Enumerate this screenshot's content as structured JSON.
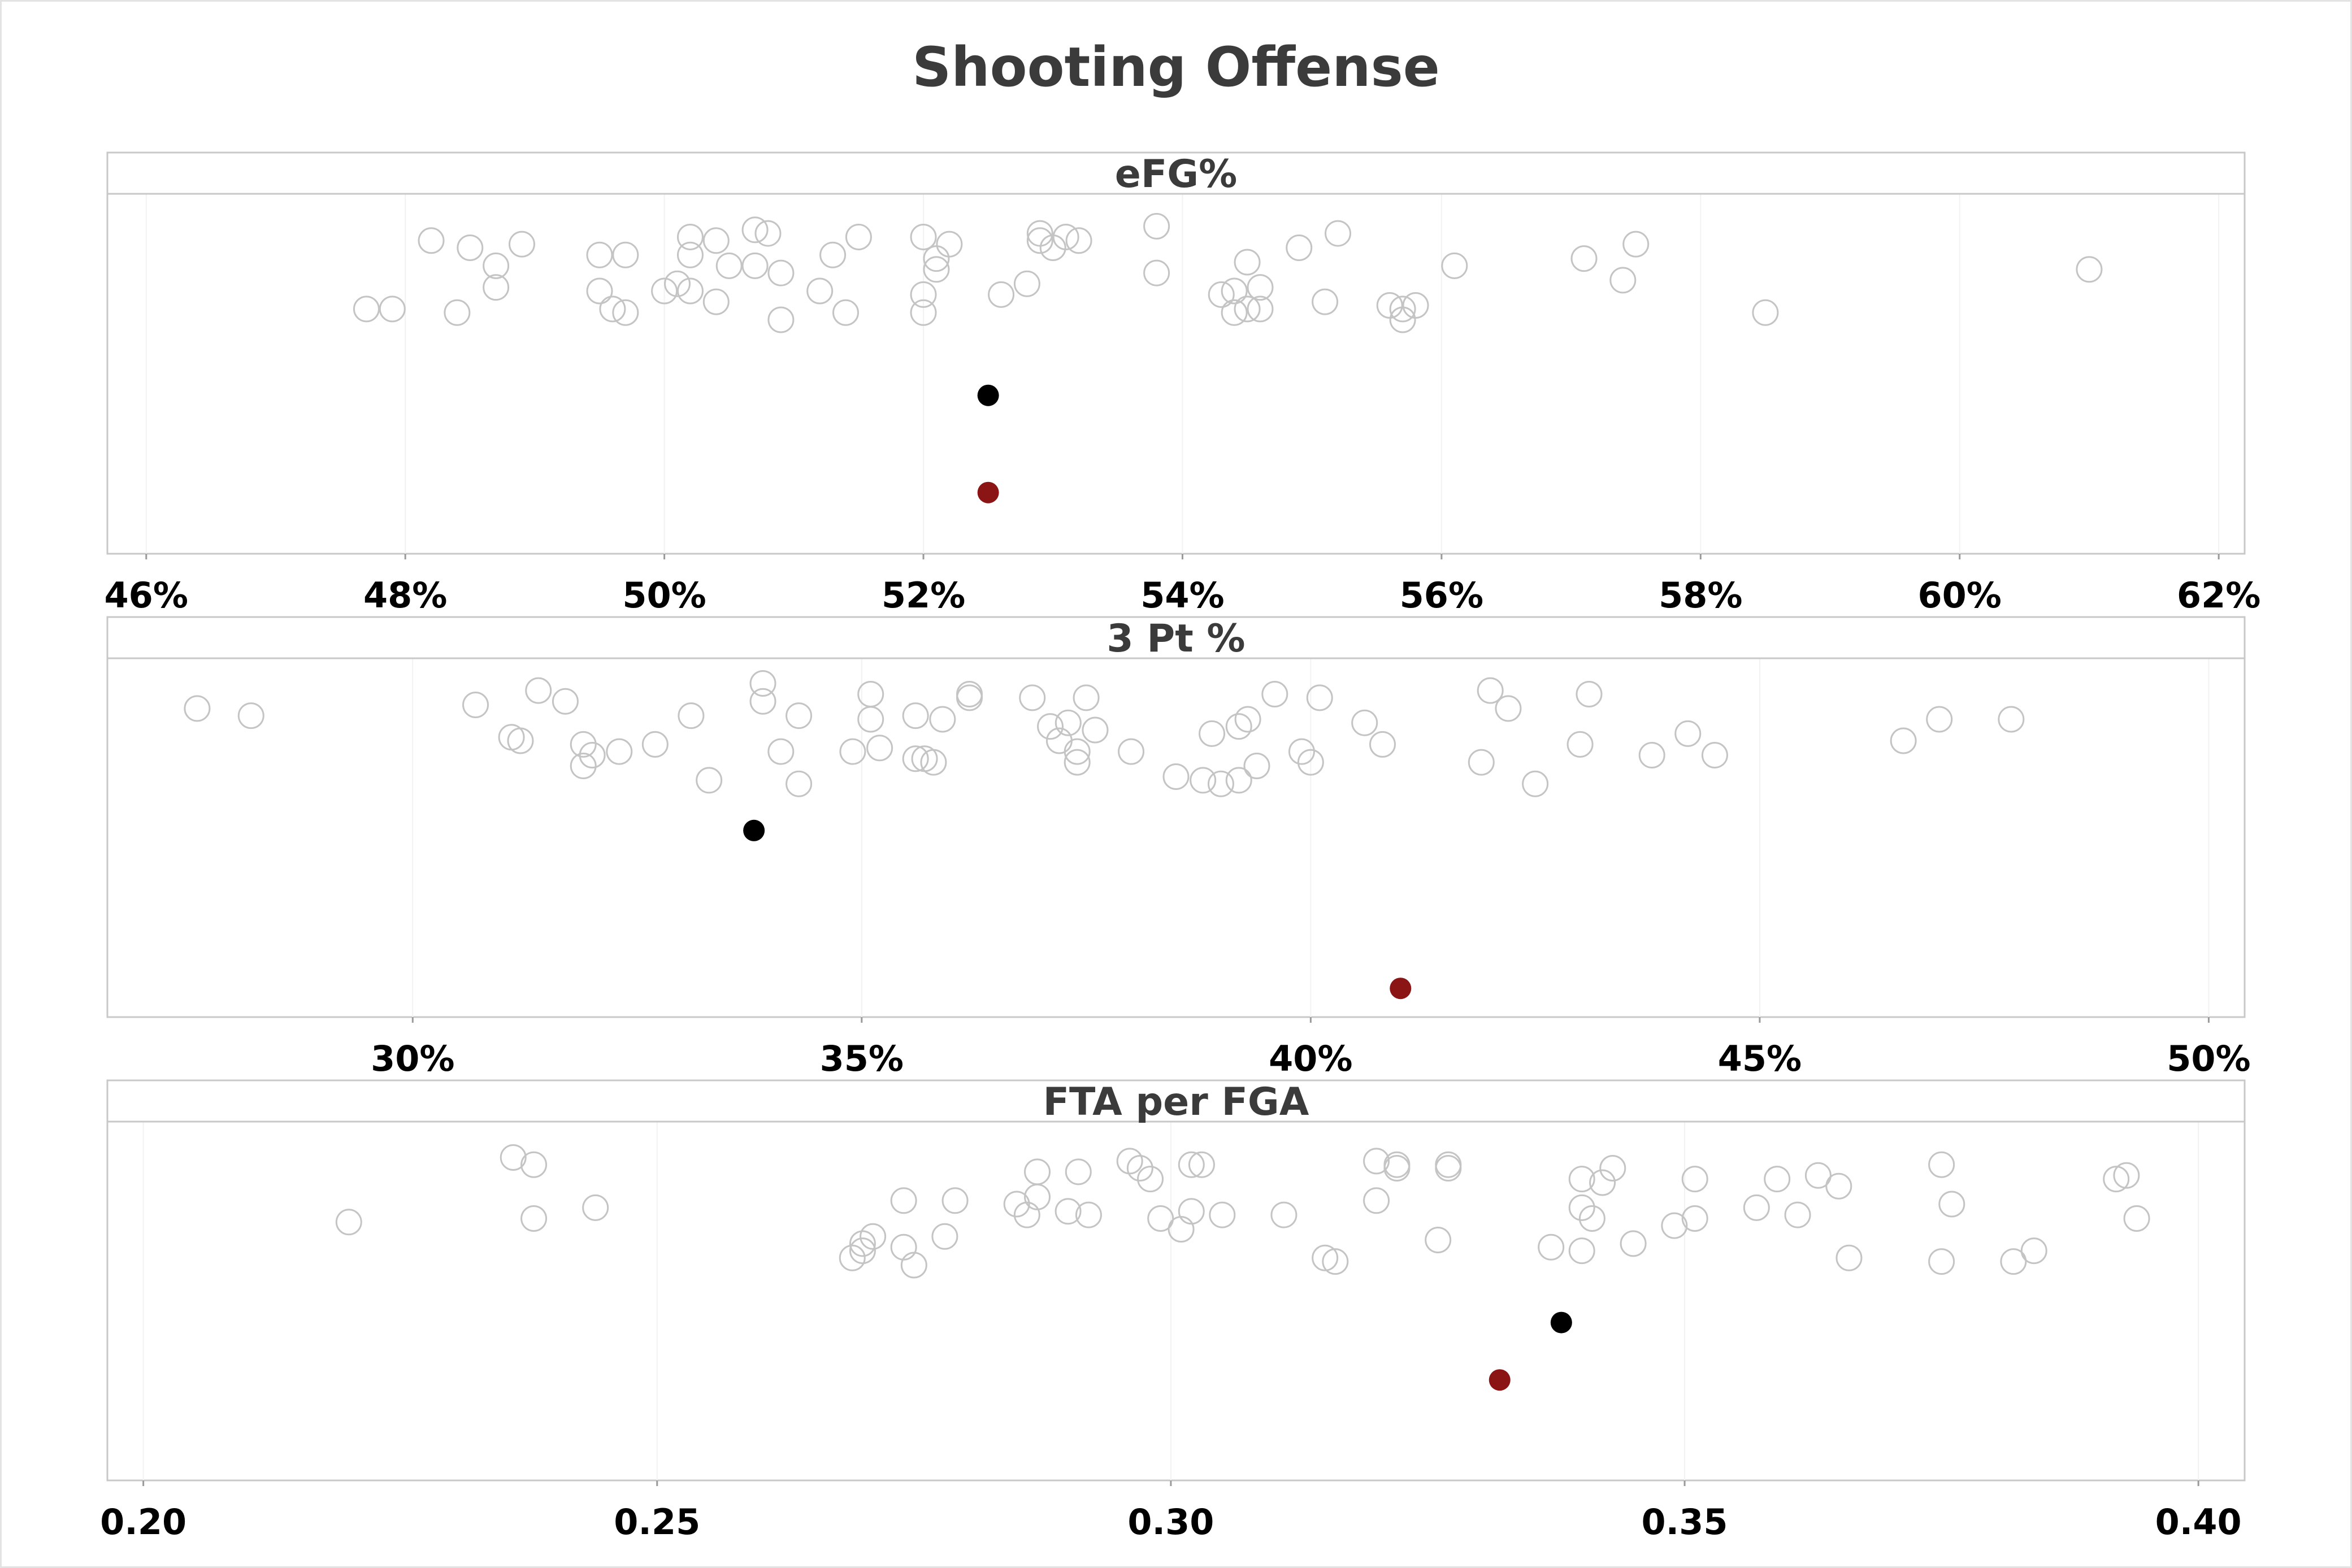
{
  "title": "Shooting Offense",
  "colors": {
    "other": "#c4c4c4",
    "team_a": "#000000",
    "team_b": "#8b1414"
  },
  "chart_data": [
    {
      "type": "scatter",
      "subtitle": "eFG%",
      "xlim": [
        0.457,
        0.622
      ],
      "ticks": [
        0.46,
        0.48,
        0.5,
        0.52,
        0.54,
        0.56,
        0.58,
        0.6,
        0.62
      ],
      "tick_labels": [
        "46%",
        "48%",
        "50%",
        "52%",
        "54%",
        "56%",
        "58%",
        "60%",
        "62%"
      ],
      "highlight": [
        {
          "x": 0.525,
          "color": "#000000",
          "jitter": 0.44
        },
        {
          "x": 0.525,
          "color": "#8b1414",
          "jitter": 0.17
        }
      ],
      "others": [
        [
          0.477,
          0.68
        ],
        [
          0.479,
          0.68
        ],
        [
          0.482,
          0.87
        ],
        [
          0.484,
          0.67
        ],
        [
          0.485,
          0.85
        ],
        [
          0.487,
          0.8
        ],
        [
          0.487,
          0.74
        ],
        [
          0.489,
          0.86
        ],
        [
          0.495,
          0.83
        ],
        [
          0.495,
          0.73
        ],
        [
          0.496,
          0.68
        ],
        [
          0.497,
          0.83
        ],
        [
          0.497,
          0.67
        ],
        [
          0.5,
          0.73
        ],
        [
          0.501,
          0.75
        ],
        [
          0.502,
          0.88
        ],
        [
          0.502,
          0.83
        ],
        [
          0.502,
          0.73
        ],
        [
          0.504,
          0.87
        ],
        [
          0.504,
          0.7
        ],
        [
          0.505,
          0.8
        ],
        [
          0.507,
          0.9
        ],
        [
          0.507,
          0.8
        ],
        [
          0.508,
          0.89
        ],
        [
          0.509,
          0.78
        ],
        [
          0.509,
          0.65
        ],
        [
          0.512,
          0.73
        ],
        [
          0.513,
          0.83
        ],
        [
          0.514,
          0.67
        ],
        [
          0.515,
          0.88
        ],
        [
          0.52,
          0.88
        ],
        [
          0.52,
          0.72
        ],
        [
          0.52,
          0.67
        ],
        [
          0.521,
          0.82
        ],
        [
          0.521,
          0.79
        ],
        [
          0.522,
          0.86
        ],
        [
          0.526,
          0.72
        ],
        [
          0.528,
          0.75
        ],
        [
          0.529,
          0.89
        ],
        [
          0.529,
          0.87
        ],
        [
          0.53,
          0.85
        ],
        [
          0.531,
          0.88
        ],
        [
          0.532,
          0.87
        ],
        [
          0.538,
          0.91
        ],
        [
          0.538,
          0.78
        ],
        [
          0.543,
          0.72
        ],
        [
          0.544,
          0.73
        ],
        [
          0.544,
          0.67
        ],
        [
          0.545,
          0.81
        ],
        [
          0.545,
          0.68
        ],
        [
          0.546,
          0.74
        ],
        [
          0.546,
          0.68
        ],
        [
          0.549,
          0.85
        ],
        [
          0.551,
          0.7
        ],
        [
          0.552,
          0.89
        ],
        [
          0.556,
          0.69
        ],
        [
          0.557,
          0.68
        ],
        [
          0.557,
          0.65
        ],
        [
          0.558,
          0.69
        ],
        [
          0.561,
          0.8
        ],
        [
          0.571,
          0.82
        ],
        [
          0.574,
          0.76
        ],
        [
          0.575,
          0.86
        ],
        [
          0.585,
          0.67
        ],
        [
          0.61,
          0.79
        ]
      ]
    },
    {
      "type": "scatter",
      "subtitle": "3 Pt %",
      "xlim": [
        0.266,
        0.504
      ],
      "ticks": [
        0.3,
        0.35,
        0.4,
        0.45,
        0.5
      ],
      "tick_labels": [
        "30%",
        "35%",
        "40%",
        "45%",
        "50%"
      ],
      "highlight": [
        {
          "x": 0.338,
          "color": "#000000",
          "jitter": 0.52
        },
        {
          "x": 0.41,
          "color": "#8b1414",
          "jitter": 0.08
        }
      ],
      "others": [
        [
          0.276,
          0.86
        ],
        [
          0.282,
          0.84
        ],
        [
          0.307,
          0.87
        ],
        [
          0.311,
          0.78
        ],
        [
          0.312,
          0.77
        ],
        [
          0.314,
          0.91
        ],
        [
          0.317,
          0.88
        ],
        [
          0.319,
          0.76
        ],
        [
          0.319,
          0.7
        ],
        [
          0.32,
          0.73
        ],
        [
          0.323,
          0.74
        ],
        [
          0.327,
          0.76
        ],
        [
          0.331,
          0.84
        ],
        [
          0.333,
          0.66
        ],
        [
          0.339,
          0.93
        ],
        [
          0.339,
          0.88
        ],
        [
          0.341,
          0.74
        ],
        [
          0.343,
          0.84
        ],
        [
          0.343,
          0.65
        ],
        [
          0.349,
          0.74
        ],
        [
          0.351,
          0.9
        ],
        [
          0.351,
          0.83
        ],
        [
          0.352,
          0.75
        ],
        [
          0.356,
          0.84
        ],
        [
          0.356,
          0.72
        ],
        [
          0.357,
          0.72
        ],
        [
          0.358,
          0.71
        ],
        [
          0.359,
          0.83
        ],
        [
          0.362,
          0.89
        ],
        [
          0.362,
          0.9
        ],
        [
          0.369,
          0.89
        ],
        [
          0.371,
          0.81
        ],
        [
          0.372,
          0.77
        ],
        [
          0.373,
          0.82
        ],
        [
          0.374,
          0.74
        ],
        [
          0.374,
          0.71
        ],
        [
          0.375,
          0.89
        ],
        [
          0.376,
          0.8
        ],
        [
          0.38,
          0.74
        ],
        [
          0.385,
          0.67
        ],
        [
          0.388,
          0.66
        ],
        [
          0.389,
          0.79
        ],
        [
          0.39,
          0.65
        ],
        [
          0.392,
          0.81
        ],
        [
          0.392,
          0.66
        ],
        [
          0.393,
          0.83
        ],
        [
          0.394,
          0.7
        ],
        [
          0.396,
          0.9
        ],
        [
          0.399,
          0.74
        ],
        [
          0.4,
          0.71
        ],
        [
          0.401,
          0.89
        ],
        [
          0.406,
          0.82
        ],
        [
          0.408,
          0.76
        ],
        [
          0.419,
          0.71
        ],
        [
          0.42,
          0.91
        ],
        [
          0.422,
          0.86
        ],
        [
          0.425,
          0.65
        ],
        [
          0.43,
          0.76
        ],
        [
          0.431,
          0.9
        ],
        [
          0.438,
          0.73
        ],
        [
          0.442,
          0.79
        ],
        [
          0.445,
          0.73
        ],
        [
          0.466,
          0.77
        ],
        [
          0.47,
          0.83
        ],
        [
          0.478,
          0.83
        ]
      ]
    },
    {
      "type": "scatter",
      "subtitle": "FTA per FGA",
      "xlim": [
        0.1965,
        0.4045
      ],
      "ticks": [
        0.2,
        0.25,
        0.3,
        0.35,
        0.4
      ],
      "tick_labels": [
        "0.20",
        "0.25",
        "0.30",
        "0.35",
        "0.40"
      ],
      "highlight": [
        {
          "x": 0.338,
          "color": "#000000",
          "jitter": 0.44
        },
        {
          "x": 0.332,
          "color": "#8b1414",
          "jitter": 0.28
        }
      ],
      "others": [
        [
          0.22,
          0.72
        ],
        [
          0.236,
          0.9
        ],
        [
          0.238,
          0.88
        ],
        [
          0.238,
          0.73
        ],
        [
          0.244,
          0.76
        ],
        [
          0.269,
          0.62
        ],
        [
          0.27,
          0.64
        ],
        [
          0.27,
          0.66
        ],
        [
          0.271,
          0.68
        ],
        [
          0.274,
          0.78
        ],
        [
          0.274,
          0.65
        ],
        [
          0.275,
          0.6
        ],
        [
          0.278,
          0.68
        ],
        [
          0.279,
          0.78
        ],
        [
          0.285,
          0.77
        ],
        [
          0.286,
          0.74
        ],
        [
          0.287,
          0.86
        ],
        [
          0.287,
          0.79
        ],
        [
          0.29,
          0.75
        ],
        [
          0.291,
          0.86
        ],
        [
          0.292,
          0.74
        ],
        [
          0.296,
          0.89
        ],
        [
          0.297,
          0.87
        ],
        [
          0.298,
          0.84
        ],
        [
          0.299,
          0.73
        ],
        [
          0.301,
          0.7
        ],
        [
          0.302,
          0.88
        ],
        [
          0.302,
          0.75
        ],
        [
          0.303,
          0.88
        ],
        [
          0.305,
          0.74
        ],
        [
          0.311,
          0.74
        ],
        [
          0.315,
          0.62
        ],
        [
          0.316,
          0.61
        ],
        [
          0.32,
          0.89
        ],
        [
          0.32,
          0.78
        ],
        [
          0.322,
          0.88
        ],
        [
          0.322,
          0.87
        ],
        [
          0.326,
          0.67
        ],
        [
          0.327,
          0.88
        ],
        [
          0.327,
          0.87
        ],
        [
          0.337,
          0.65
        ],
        [
          0.34,
          0.84
        ],
        [
          0.34,
          0.76
        ],
        [
          0.34,
          0.64
        ],
        [
          0.341,
          0.73
        ],
        [
          0.342,
          0.83
        ],
        [
          0.343,
          0.87
        ],
        [
          0.345,
          0.66
        ],
        [
          0.351,
          0.84
        ],
        [
          0.351,
          0.73
        ],
        [
          0.349,
          0.71
        ],
        [
          0.357,
          0.76
        ],
        [
          0.359,
          0.84
        ],
        [
          0.361,
          0.74
        ],
        [
          0.363,
          0.85
        ],
        [
          0.365,
          0.82
        ],
        [
          0.366,
          0.62
        ],
        [
          0.375,
          0.88
        ],
        [
          0.375,
          0.61
        ],
        [
          0.376,
          0.77
        ],
        [
          0.382,
          0.61
        ],
        [
          0.384,
          0.64
        ],
        [
          0.392,
          0.84
        ],
        [
          0.393,
          0.85
        ],
        [
          0.394,
          0.73
        ]
      ]
    }
  ]
}
